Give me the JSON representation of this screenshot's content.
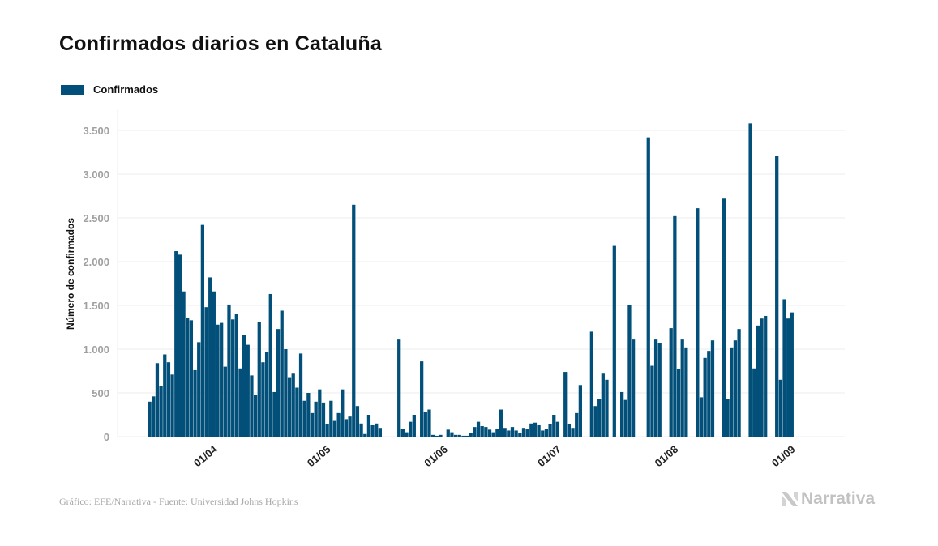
{
  "title": "Confirmados diarios en Cataluña",
  "legend": {
    "label": "Confirmados",
    "color": "#02507a"
  },
  "footer": {
    "source": "Gráfico: EFE/Narrativa - Fuente: Universidad Johns Hopkins",
    "brand": "Narrativa"
  },
  "chart_data": {
    "type": "bar",
    "title": "Confirmados diarios en Cataluña",
    "xlabel": "",
    "ylabel": "Número de confirmados",
    "ylim": [
      0,
      3700
    ],
    "yticks": [
      0,
      500,
      1000,
      1500,
      2000,
      2500,
      3000,
      3500
    ],
    "ytick_labels": [
      "0",
      "500",
      "1.000",
      "1.500",
      "2.000",
      "2.500",
      "3.000",
      "3.500"
    ],
    "xticks": [
      {
        "label": "01/04",
        "index": 15
      },
      {
        "label": "01/05",
        "index": 45
      },
      {
        "label": "01/06",
        "index": 76
      },
      {
        "label": "01/07",
        "index": 106
      },
      {
        "label": "01/08",
        "index": 137
      },
      {
        "label": "01/09",
        "index": 168
      }
    ],
    "grid": true,
    "legend_position": "top-left",
    "series": [
      {
        "name": "Confirmados",
        "color": "#02507a",
        "start_date": "17/03",
        "values": [
          400,
          460,
          840,
          580,
          940,
          850,
          710,
          2120,
          2080,
          1660,
          1360,
          1330,
          760,
          1080,
          2420,
          1480,
          1820,
          1660,
          1280,
          1300,
          800,
          1510,
          1340,
          1400,
          780,
          1160,
          1050,
          700,
          480,
          1310,
          850,
          970,
          1630,
          510,
          1230,
          1440,
          1000,
          680,
          720,
          560,
          950,
          410,
          500,
          270,
          400,
          540,
          390,
          140,
          410,
          180,
          270,
          540,
          200,
          230,
          2650,
          350,
          150,
          30,
          250,
          130,
          150,
          100,
          0,
          0,
          0,
          0,
          1110,
          90,
          50,
          170,
          250,
          0,
          860,
          280,
          310,
          20,
          10,
          20,
          0,
          80,
          50,
          20,
          20,
          10,
          10,
          40,
          110,
          170,
          120,
          110,
          80,
          50,
          90,
          310,
          100,
          70,
          110,
          70,
          40,
          100,
          90,
          150,
          160,
          130,
          70,
          90,
          140,
          250,
          170,
          0,
          740,
          140,
          100,
          270,
          590,
          0,
          0,
          1200,
          350,
          430,
          720,
          650,
          0,
          2180,
          0,
          510,
          420,
          1500,
          1110,
          0,
          0,
          0,
          3420,
          810,
          1110,
          1070,
          0,
          0,
          1240,
          2520,
          770,
          1110,
          1020,
          0,
          0,
          2610,
          450,
          900,
          980,
          1100,
          0,
          0,
          2720,
          430,
          1020,
          1100,
          1230,
          0,
          0,
          3580,
          780,
          1270,
          1350,
          1380,
          0,
          0,
          3210,
          650,
          1570,
          1350,
          1420,
          0
        ]
      }
    ]
  }
}
